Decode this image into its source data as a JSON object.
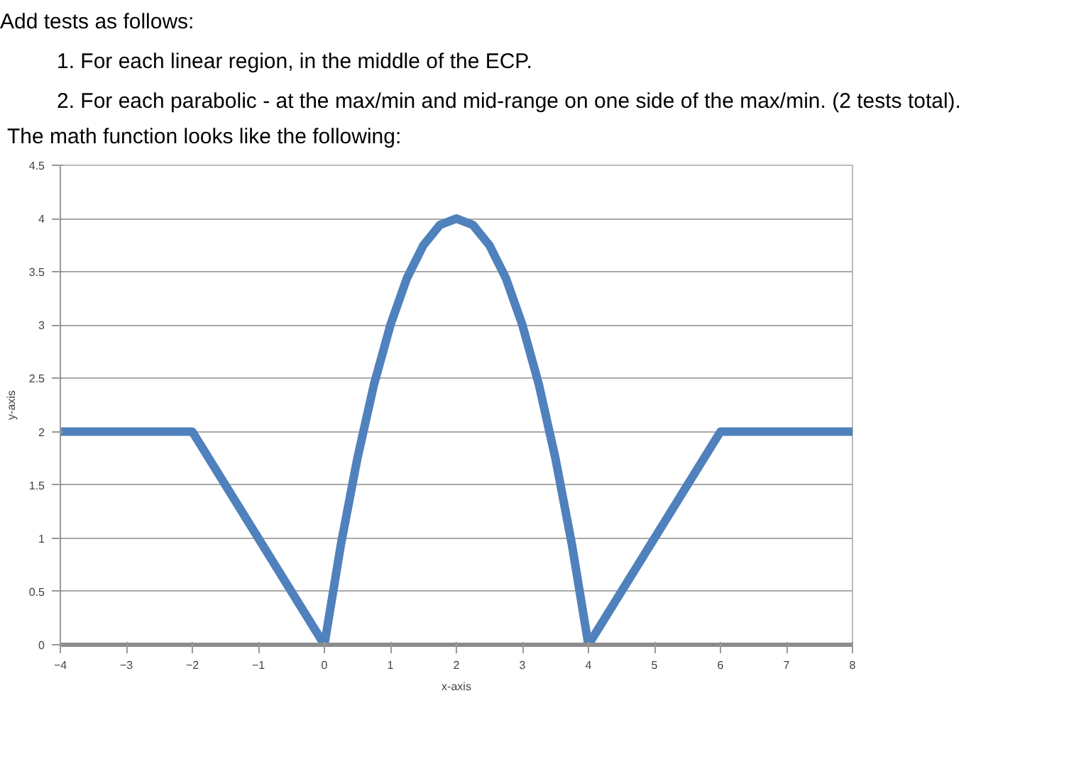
{
  "chart_data": {
    "type": "line",
    "title": "The math function looks like the following:",
    "annotations": [
      "Add tests as follows:",
      "1. For each linear region, in the middle of the ECP.",
      "2. For each parabolic - at the max/min and mid-range on one side of the max/min. (2 tests total)."
    ],
    "xlabel": "x-axis",
    "ylabel": "y-axis",
    "x": [
      -4,
      -2,
      0,
      0.25,
      0.5,
      0.75,
      1,
      1.25,
      1.5,
      1.75,
      2,
      2.25,
      2.5,
      2.75,
      3,
      3.25,
      3.5,
      3.75,
      4,
      6,
      8
    ],
    "series": [
      {
        "color": "#4f81bd",
        "values": [
          2,
          2,
          0,
          0.94,
          1.75,
          2.44,
          3,
          3.44,
          3.75,
          3.94,
          4,
          3.94,
          3.75,
          3.44,
          3,
          2.44,
          1.75,
          0.94,
          0,
          2,
          2
        ]
      }
    ],
    "xlim": [
      -4,
      8
    ],
    "ylim": [
      0,
      4.5
    ],
    "xticks": [
      -4,
      -3,
      -2,
      -1,
      0,
      1,
      2,
      3,
      4,
      5,
      6,
      7,
      8
    ],
    "yticks": [
      0,
      0.5,
      1,
      1.5,
      2,
      2.5,
      3,
      3.5,
      4,
      4.5
    ],
    "grid": "y",
    "marker": "none",
    "line_style": "solid"
  }
}
